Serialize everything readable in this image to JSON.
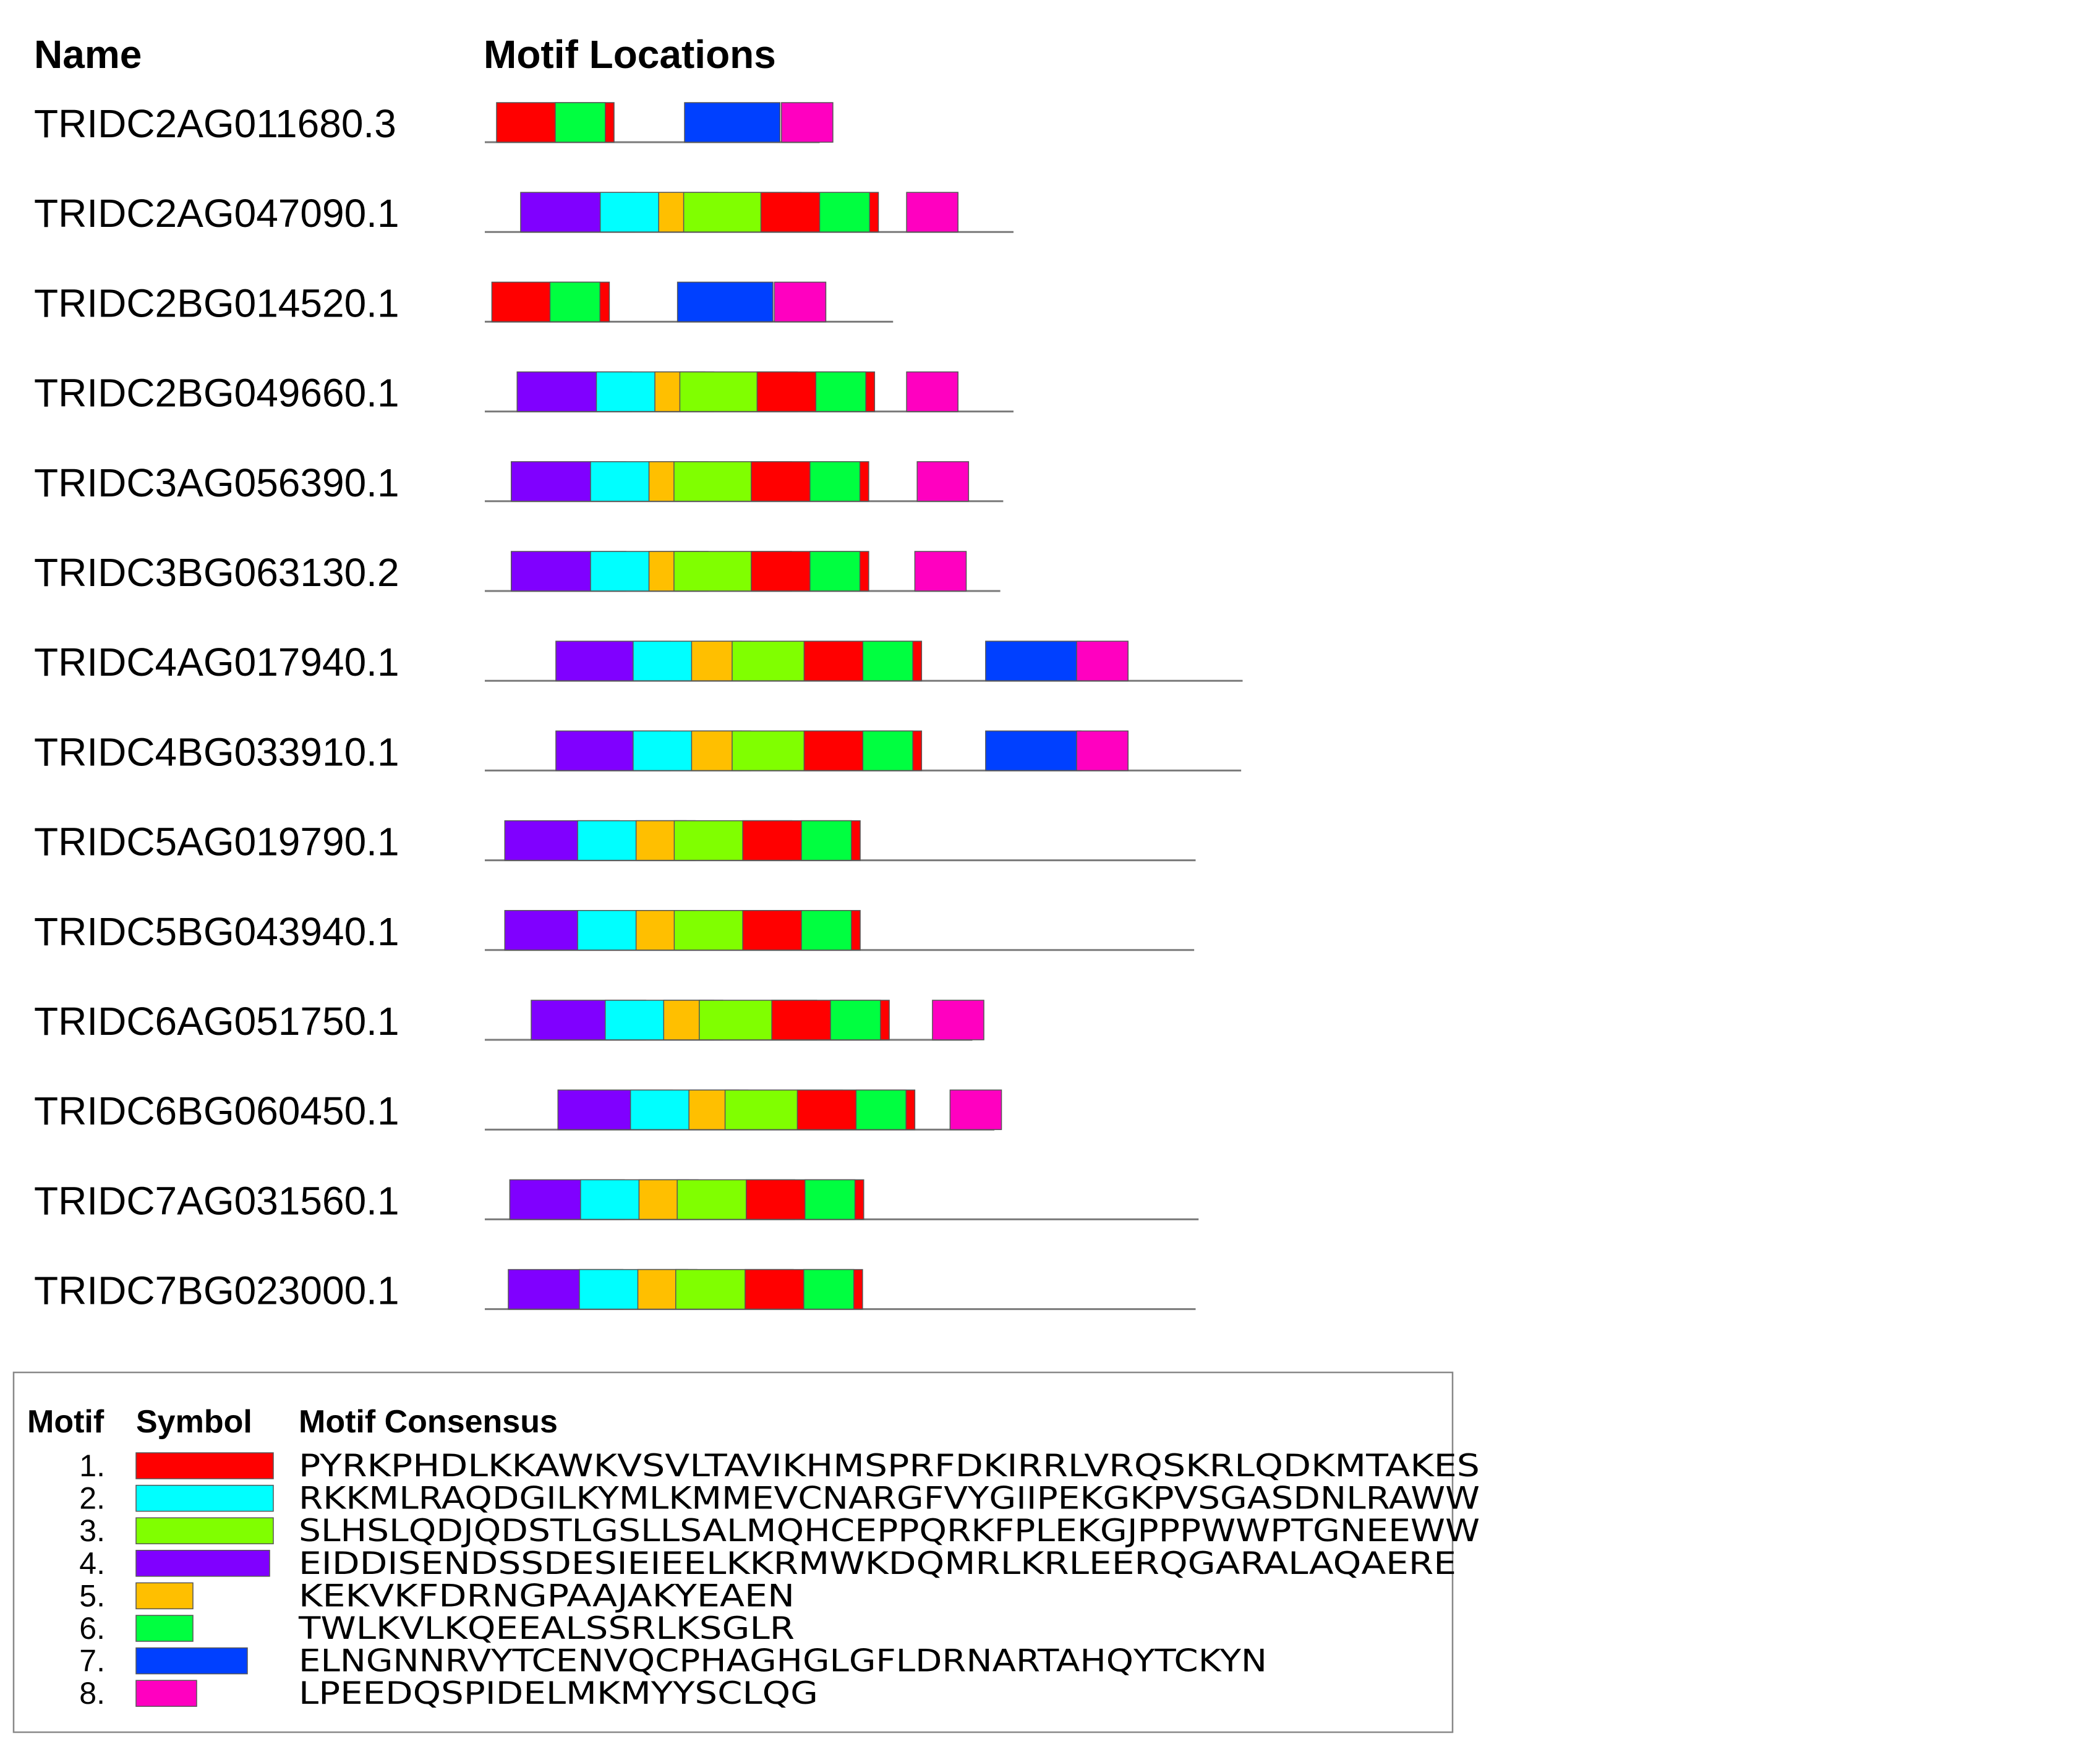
{
  "headers": {
    "name": "Name",
    "locations": "Motif Locations"
  },
  "motifs": [
    {
      "id": 1,
      "color": "#ff0000",
      "consensus": "PYRKPHDLKKAWKVSVLTAVIKHMSPRFDKIRRLVRQSKRLQDKMTAKES"
    },
    {
      "id": 2,
      "color": "#00ffff",
      "consensus": "RKKMLRAQDGILKYMLKMMEVCNARGFVYGIIPEKGKPVSGASDNLRAWW"
    },
    {
      "id": 3,
      "color": "#80ff00",
      "consensus": "SLHSLQDJQDSTLGSLLSALMQHCEPPQRKFPLEKGJPPPWWPTGNEEWW"
    },
    {
      "id": 4,
      "color": "#8000ff",
      "consensus": "EIDDISENDSSDESIEIEELKKRMWKDQMRLKRLEERQGARALAQAERE"
    },
    {
      "id": 5,
      "color": "#ffbf00",
      "consensus": "KEKVKFDRNGPAAJAKYEAEN"
    },
    {
      "id": 6,
      "color": "#00ff40",
      "consensus": "TWLKVLKQEEALSSRLKSGLR"
    },
    {
      "id": 7,
      "color": "#0040ff",
      "consensus": "ELNGNNRVYTCENVQCPHAGHGLGFLDRNARTAHQYTCKYN"
    },
    {
      "id": 8,
      "color": "#ff00c0",
      "consensus": "LPEEDQSPIDELMKMYYSCLQG"
    }
  ],
  "legend": {
    "headers": {
      "motif": "Motif",
      "symbol": "Symbol",
      "consensus": "Motif Consensus"
    },
    "numbers": [
      "1.",
      "2.",
      "3.",
      "4.",
      "5.",
      "6.",
      "7.",
      "8."
    ]
  },
  "sequences": [
    {
      "name": "TRIDC2AG011680.3",
      "length": 1140,
      "sites": [
        [
          1,
          40
        ],
        [
          6,
          240
        ],
        [
          7,
          680
        ],
        [
          8,
          1010
        ]
      ]
    },
    {
      "name": "TRIDC2AG047090.1",
      "length": 1800,
      "sites": [
        [
          4,
          122
        ],
        [
          2,
          393
        ],
        [
          5,
          592
        ],
        [
          3,
          677
        ],
        [
          1,
          940
        ],
        [
          6,
          1140
        ],
        [
          8,
          1436
        ]
      ]
    },
    {
      "name": "TRIDC2BG014520.1",
      "length": 1390,
      "sites": [
        [
          1,
          24
        ],
        [
          6,
          222
        ],
        [
          7,
          656
        ],
        [
          8,
          986
        ]
      ]
    },
    {
      "name": "TRIDC2BG049660.1",
      "length": 1800,
      "sites": [
        [
          4,
          110
        ],
        [
          2,
          380
        ],
        [
          5,
          579
        ],
        [
          3,
          664
        ],
        [
          1,
          927
        ],
        [
          6,
          1127
        ],
        [
          8,
          1436
        ]
      ]
    },
    {
      "name": "TRIDC3AG056390.1",
      "length": 1765,
      "sites": [
        [
          4,
          90
        ],
        [
          2,
          360
        ],
        [
          5,
          559
        ],
        [
          3,
          644
        ],
        [
          1,
          907
        ],
        [
          6,
          1107
        ],
        [
          8,
          1472
        ]
      ]
    },
    {
      "name": "TRIDC3BG063130.2",
      "length": 1755,
      "sites": [
        [
          4,
          90
        ],
        [
          2,
          360
        ],
        [
          5,
          559
        ],
        [
          3,
          644
        ],
        [
          1,
          907
        ],
        [
          6,
          1107
        ],
        [
          8,
          1464
        ]
      ]
    },
    {
      "name": "TRIDC4AG017940.1",
      "length": 2580,
      "sites": [
        [
          4,
          242
        ],
        [
          2,
          505
        ],
        [
          5,
          704
        ],
        [
          3,
          842
        ],
        [
          1,
          1087
        ],
        [
          6,
          1287
        ],
        [
          7,
          1705
        ],
        [
          8,
          2015
        ]
      ]
    },
    {
      "name": "TRIDC4BG033910.1",
      "length": 2575,
      "sites": [
        [
          4,
          242
        ],
        [
          2,
          505
        ],
        [
          5,
          704
        ],
        [
          3,
          842
        ],
        [
          1,
          1087
        ],
        [
          6,
          1287
        ],
        [
          7,
          1705
        ],
        [
          8,
          2015
        ]
      ]
    },
    {
      "name": "TRIDC5AG019790.1",
      "length": 2420,
      "sites": [
        [
          4,
          68
        ],
        [
          2,
          316
        ],
        [
          5,
          515
        ],
        [
          3,
          645
        ],
        [
          1,
          878
        ],
        [
          6,
          1078
        ]
      ]
    },
    {
      "name": "TRIDC5BG043940.1",
      "length": 2415,
      "sites": [
        [
          4,
          68
        ],
        [
          2,
          316
        ],
        [
          5,
          515
        ],
        [
          3,
          645
        ],
        [
          1,
          878
        ],
        [
          6,
          1078
        ]
      ]
    },
    {
      "name": "TRIDC6AG051750.1",
      "length": 1660,
      "sites": [
        [
          4,
          158
        ],
        [
          2,
          410
        ],
        [
          5,
          609
        ],
        [
          3,
          730
        ],
        [
          1,
          977
        ],
        [
          6,
          1177
        ],
        [
          8,
          1524
        ]
      ]
    },
    {
      "name": "TRIDC6BG060450.1",
      "length": 1735,
      "sites": [
        [
          4,
          249
        ],
        [
          2,
          496
        ],
        [
          5,
          695
        ],
        [
          3,
          818
        ],
        [
          1,
          1064
        ],
        [
          6,
          1264
        ],
        [
          8,
          1584
        ]
      ]
    },
    {
      "name": "TRIDC7AG031560.1",
      "length": 2430,
      "sites": [
        [
          4,
          85
        ],
        [
          2,
          326
        ],
        [
          5,
          525
        ],
        [
          3,
          655
        ],
        [
          1,
          890
        ],
        [
          6,
          1090
        ]
      ]
    },
    {
      "name": "TRIDC7BG023000.1",
      "length": 2420,
      "sites": [
        [
          4,
          80
        ],
        [
          2,
          322
        ],
        [
          5,
          521
        ],
        [
          3,
          650
        ],
        [
          1,
          886
        ],
        [
          6,
          1086
        ]
      ]
    }
  ]
}
